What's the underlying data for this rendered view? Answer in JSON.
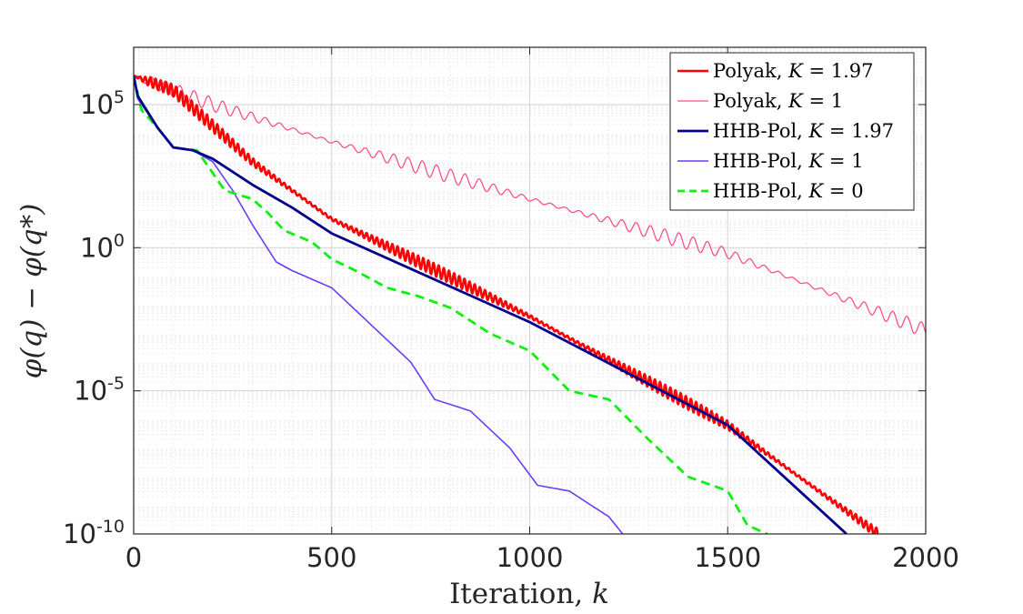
{
  "chart_data": {
    "type": "line",
    "title": "",
    "xlabel": "Iteration, k",
    "ylabel": "φ(q) − φ(q*)",
    "xlim": [
      0,
      2000
    ],
    "ylim_log10": [
      -10,
      7
    ],
    "yscale": "log",
    "grid": true,
    "minor_grid": true,
    "legend_position": "top-right",
    "x_ticks": [
      {
        "value": 0,
        "label": "0"
      },
      {
        "value": 500,
        "label": "500"
      },
      {
        "value": 1000,
        "label": "1000"
      },
      {
        "value": 1500,
        "label": "1500"
      },
      {
        "value": 2000,
        "label": "2000"
      }
    ],
    "y_ticks": [
      {
        "log10": 5,
        "base": "10",
        "exp": "5"
      },
      {
        "log10": 0,
        "base": "10",
        "exp": "0"
      },
      {
        "log10": -5,
        "base": "10",
        "exp": "-5"
      },
      {
        "log10": -10,
        "base": "10",
        "exp": "-10"
      }
    ],
    "series": [
      {
        "name": "Polyak, K = 1",
        "legend_prefix": "Polyak,",
        "legend_var": "K",
        "legend_value": "= 1",
        "color": "#ff4f8b",
        "width": 1.3,
        "dash": "",
        "oscillation": {
          "amplitude_log10": 0.25,
          "period": 36
        },
        "points": [
          [
            0,
            6.0
          ],
          [
            200,
            5.0
          ],
          [
            500,
            3.7
          ],
          [
            1000,
            1.7
          ],
          [
            1500,
            -0.2
          ],
          [
            2000,
            -2.9
          ]
        ]
      },
      {
        "name": "HHB-Pol, K = 1",
        "legend_prefix": "HHB-Pol,",
        "legend_var": "K",
        "legend_value": "= 1",
        "color": "#6a3df5",
        "width": 1.6,
        "dash": "",
        "points": [
          [
            0,
            6.0
          ],
          [
            10,
            5.2
          ],
          [
            60,
            4.2
          ],
          [
            100,
            3.5
          ],
          [
            150,
            3.4
          ],
          [
            200,
            3.0
          ],
          [
            250,
            2.0
          ],
          [
            300,
            0.8
          ],
          [
            360,
            -0.5
          ],
          [
            400,
            -0.8
          ],
          [
            500,
            -1.4
          ],
          [
            600,
            -2.7
          ],
          [
            700,
            -4.0
          ],
          [
            760,
            -5.3
          ],
          [
            850,
            -5.7
          ],
          [
            950,
            -7.0
          ],
          [
            1020,
            -8.3
          ],
          [
            1100,
            -8.5
          ],
          [
            1200,
            -9.4
          ],
          [
            1235,
            -10.0
          ]
        ]
      },
      {
        "name": "Polyak, K = 1.97",
        "legend_prefix": "Polyak,",
        "legend_var": "K",
        "legend_value": "= 1.97",
        "color": "#ff0000",
        "width": 2.6,
        "dash": "",
        "oscillation": {
          "amplitude_log10": 0.22,
          "period": 13
        },
        "points": [
          [
            0,
            6.0
          ],
          [
            100,
            5.5
          ],
          [
            300,
            3.0
          ],
          [
            500,
            1.0
          ],
          [
            1000,
            -2.4
          ],
          [
            1500,
            -6.2
          ],
          [
            1880,
            -10.0
          ]
        ]
      },
      {
        "name": "HHB-Pol, K = 0",
        "legend_prefix": "HHB-Pol,",
        "legend_var": "K",
        "legend_value": "= 0",
        "color": "#10f010",
        "width": 2.8,
        "dash": "10,6",
        "points": [
          [
            0,
            6.0
          ],
          [
            20,
            4.8
          ],
          [
            60,
            4.2
          ],
          [
            100,
            3.5
          ],
          [
            160,
            3.4
          ],
          [
            230,
            2.0
          ],
          [
            300,
            1.7
          ],
          [
            340,
            1.2
          ],
          [
            380,
            0.6
          ],
          [
            450,
            0.2
          ],
          [
            500,
            -0.4
          ],
          [
            560,
            -0.8
          ],
          [
            640,
            -1.4
          ],
          [
            720,
            -1.7
          ],
          [
            800,
            -2.1
          ],
          [
            900,
            -3.0
          ],
          [
            1000,
            -3.6
          ],
          [
            1100,
            -5.0
          ],
          [
            1200,
            -5.3
          ],
          [
            1300,
            -6.7
          ],
          [
            1400,
            -8.0
          ],
          [
            1500,
            -8.5
          ],
          [
            1550,
            -9.7
          ],
          [
            1600,
            -10.0
          ]
        ]
      },
      {
        "name": "HHB-Pol, K = 1.97",
        "legend_prefix": "HHB-Pol,",
        "legend_var": "K",
        "legend_value": "= 1.97",
        "color": "#00008b",
        "width": 2.8,
        "dash": "",
        "points": [
          [
            0,
            6.0
          ],
          [
            10,
            5.3
          ],
          [
            60,
            4.2
          ],
          [
            100,
            3.5
          ],
          [
            150,
            3.4
          ],
          [
            200,
            3.1
          ],
          [
            300,
            2.2
          ],
          [
            400,
            1.4
          ],
          [
            500,
            0.5
          ],
          [
            1000,
            -2.6
          ],
          [
            1500,
            -6.2
          ],
          [
            1800,
            -10.0
          ]
        ]
      }
    ],
    "legend_order": [
      2,
      0,
      4,
      1,
      3
    ]
  }
}
